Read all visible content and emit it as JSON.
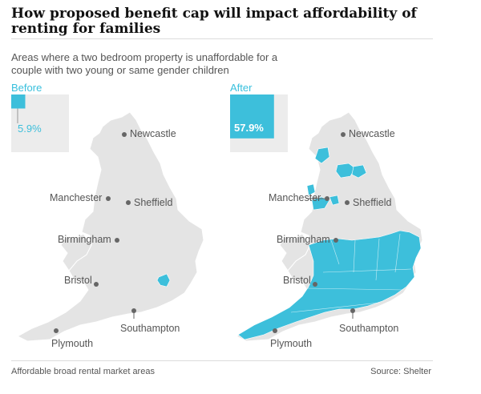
{
  "title": "How proposed benefit cap will impact affordability of renting for families",
  "subtitle": "Areas where a two bedroom property is unaffordable for a couple with two young or same gender children",
  "footer": {
    "left": "Affordable broad rental market areas",
    "right": "Source: Shelter"
  },
  "colors": {
    "unaffordable": "#3dbfdb",
    "land": "#e4e4e4",
    "box": "#ececec",
    "text": "#555555"
  },
  "chart_data": [
    {
      "type": "choropleth-map",
      "panel": "Before",
      "unaffordable_share_pct": 5.9,
      "unaffordable_share_label": "5.9%",
      "cities": [
        "Newcastle",
        "Manchester",
        "Sheffield",
        "Birmingham",
        "Bristol",
        "Southampton",
        "Plymouth"
      ]
    },
    {
      "type": "choropleth-map",
      "panel": "After",
      "unaffordable_share_pct": 57.9,
      "unaffordable_share_label": "57.9%",
      "cities": [
        "Newcastle",
        "Manchester",
        "Sheffield",
        "Birmingham",
        "Bristol",
        "Southampton",
        "Plymouth"
      ]
    }
  ]
}
